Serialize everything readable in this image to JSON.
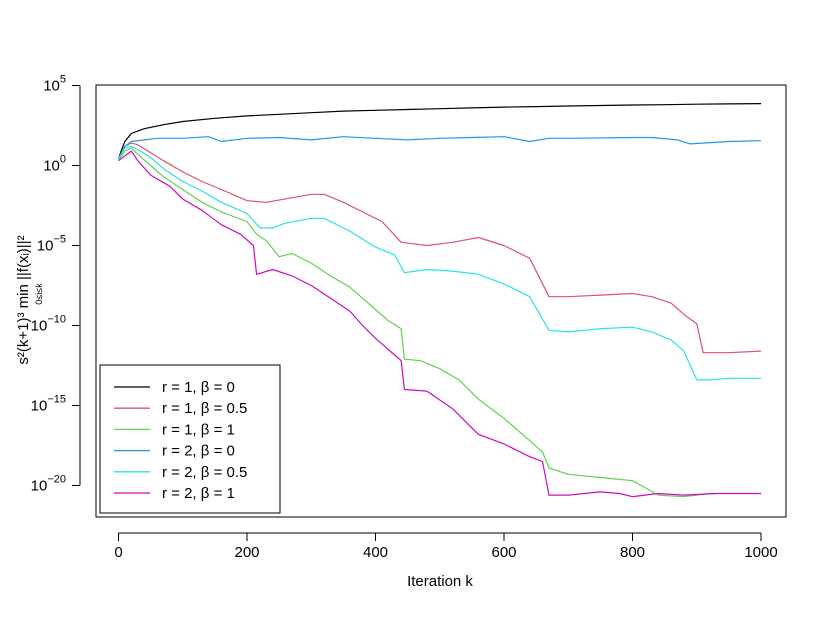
{
  "chart_data": {
    "type": "line",
    "title": "",
    "xlabel": "Iteration  k",
    "ylabel": "s²(k+1)³ min ||f(xᵢ)||²",
    "ylabel_sub": "0≤i≤k",
    "xlim": [
      0,
      1000
    ],
    "ylim_exp": [
      -21,
      5
    ],
    "log_scale_y": true,
    "grid": false,
    "legend_position": "bottom-left",
    "x_ticks": [
      0,
      200,
      400,
      600,
      800,
      1000
    ],
    "x_tick_labels": [
      "0",
      "200",
      "400",
      "600",
      "800",
      "1000"
    ],
    "y_ticks_exp": [
      5,
      0,
      -5,
      -10,
      -15,
      -20
    ],
    "y_tick_labels": [
      {
        "base": "10",
        "exp": "5"
      },
      {
        "base": "10",
        "exp": "0"
      },
      {
        "base": "10",
        "exp": "−5"
      },
      {
        "base": "10",
        "exp": "−10"
      },
      {
        "base": "10",
        "exp": "−15"
      },
      {
        "base": "10",
        "exp": "−20"
      }
    ],
    "series": [
      {
        "name": "r = 1, β = 0",
        "color": "#000000",
        "x": [
          0,
          5,
          10,
          20,
          40,
          70,
          100,
          150,
          200,
          250,
          300,
          350,
          400,
          450,
          500,
          550,
          600,
          650,
          700,
          750,
          800,
          850,
          900,
          950,
          1000
        ],
        "y_exp": [
          0.4,
          1.0,
          1.5,
          2.0,
          2.3,
          2.55,
          2.75,
          2.95,
          3.1,
          3.2,
          3.3,
          3.4,
          3.45,
          3.5,
          3.55,
          3.6,
          3.65,
          3.68,
          3.72,
          3.75,
          3.78,
          3.8,
          3.83,
          3.85,
          3.87
        ]
      },
      {
        "name": "r = 1, β = 0.5",
        "color": "#DF536B",
        "x": [
          0,
          10,
          20,
          30,
          50,
          70,
          100,
          130,
          160,
          200,
          230,
          300,
          320,
          350,
          380,
          410,
          440,
          480,
          520,
          560,
          600,
          640,
          670,
          700,
          750,
          800,
          830,
          860,
          880,
          900,
          910,
          950,
          1000
        ],
        "y_exp": [
          0.4,
          1.2,
          1.4,
          1.3,
          0.8,
          0.3,
          -0.4,
          -1.0,
          -1.5,
          -2.2,
          -2.3,
          -1.8,
          -1.8,
          -2.3,
          -2.9,
          -3.5,
          -4.8,
          -5.0,
          -4.8,
          -4.5,
          -5.0,
          -5.8,
          -8.2,
          -8.2,
          -8.1,
          -8.0,
          -8.2,
          -8.6,
          -9.3,
          -9.9,
          -11.7,
          -11.7,
          -11.6
        ]
      },
      {
        "name": "r = 1, β = 1",
        "color": "#61D04F",
        "x": [
          0,
          10,
          20,
          30,
          50,
          70,
          100,
          130,
          160,
          200,
          215,
          230,
          250,
          270,
          300,
          330,
          360,
          380,
          400,
          420,
          440,
          445,
          470,
          500,
          530,
          560,
          600,
          640,
          660,
          670,
          700,
          750,
          800,
          840,
          880,
          920,
          930
        ],
        "y_exp": [
          0.3,
          0.9,
          1.1,
          0.7,
          0.0,
          -0.7,
          -1.5,
          -2.3,
          -2.9,
          -3.5,
          -4.3,
          -4.7,
          -5.7,
          -5.5,
          -6.1,
          -6.9,
          -7.6,
          -8.3,
          -9.0,
          -9.7,
          -10.2,
          -12.1,
          -12.2,
          -12.7,
          -13.4,
          -14.6,
          -15.8,
          -17.2,
          -17.9,
          -18.9,
          -19.3,
          -19.5,
          -19.7,
          -20.6,
          -20.7,
          -20.5,
          -20.5
        ]
      },
      {
        "name": "r = 2, β = 0",
        "color": "#2297E6",
        "x": [
          0,
          10,
          20,
          40,
          60,
          100,
          140,
          160,
          200,
          250,
          300,
          350,
          400,
          450,
          500,
          550,
          600,
          640,
          670,
          700,
          800,
          830,
          870,
          890,
          950,
          1000
        ],
        "y_exp": [
          0.4,
          1.2,
          1.5,
          1.6,
          1.7,
          1.7,
          1.8,
          1.5,
          1.7,
          1.75,
          1.6,
          1.8,
          1.7,
          1.6,
          1.7,
          1.75,
          1.8,
          1.5,
          1.7,
          1.7,
          1.75,
          1.75,
          1.6,
          1.35,
          1.5,
          1.55
        ]
      },
      {
        "name": "r = 2, β = 0.5",
        "color": "#28E2E5",
        "x": [
          0,
          10,
          20,
          30,
          50,
          70,
          100,
          130,
          160,
          200,
          220,
          240,
          260,
          300,
          320,
          360,
          400,
          430,
          445,
          480,
          520,
          560,
          600,
          640,
          670,
          700,
          750,
          800,
          830,
          860,
          880,
          900,
          920,
          950,
          1000
        ],
        "y_exp": [
          0.4,
          1.1,
          1.2,
          1.0,
          0.5,
          -0.2,
          -1.0,
          -1.6,
          -2.3,
          -3.0,
          -3.9,
          -3.9,
          -3.6,
          -3.3,
          -3.3,
          -4.1,
          -5.1,
          -5.6,
          -6.7,
          -6.5,
          -6.6,
          -6.8,
          -7.4,
          -8.2,
          -10.3,
          -10.4,
          -10.2,
          -10.1,
          -10.4,
          -10.9,
          -11.6,
          -13.4,
          -13.4,
          -13.3,
          -13.3
        ]
      },
      {
        "name": "r = 2, β = 1",
        "color": "#CD0BBC",
        "x": [
          0,
          10,
          20,
          30,
          50,
          80,
          100,
          130,
          160,
          190,
          210,
          215,
          240,
          270,
          300,
          330,
          360,
          380,
          400,
          420,
          440,
          445,
          480,
          520,
          560,
          600,
          640,
          660,
          670,
          700,
          750,
          780,
          800,
          840,
          880,
          930,
          1000
        ],
        "y_exp": [
          0.3,
          0.6,
          0.9,
          0.3,
          -0.6,
          -1.3,
          -2.1,
          -2.8,
          -3.7,
          -4.3,
          -5.0,
          -6.8,
          -6.5,
          -6.9,
          -7.5,
          -8.3,
          -9.1,
          -10.0,
          -10.8,
          -11.5,
          -12.2,
          -14.0,
          -14.1,
          -15.2,
          -16.8,
          -17.4,
          -18.2,
          -18.5,
          -20.6,
          -20.6,
          -20.4,
          -20.5,
          -20.7,
          -20.5,
          -20.6,
          -20.5,
          -20.5
        ]
      }
    ]
  }
}
